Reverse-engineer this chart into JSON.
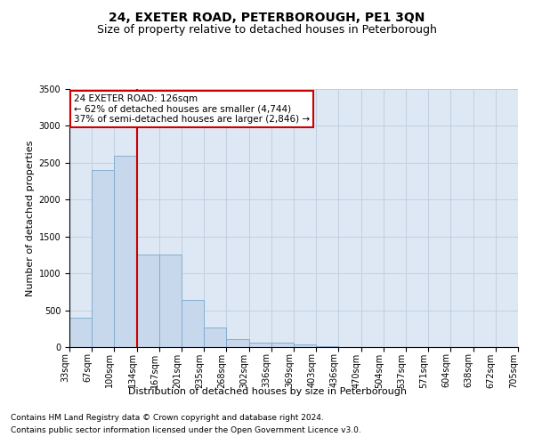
{
  "title": "24, EXETER ROAD, PETERBOROUGH, PE1 3QN",
  "subtitle": "Size of property relative to detached houses in Peterborough",
  "xlabel": "Distribution of detached houses by size in Peterborough",
  "ylabel": "Number of detached properties",
  "footnote1": "Contains HM Land Registry data © Crown copyright and database right 2024.",
  "footnote2": "Contains public sector information licensed under the Open Government Licence v3.0.",
  "bin_labels": [
    "33sqm",
    "67sqm",
    "100sqm",
    "134sqm",
    "167sqm",
    "201sqm",
    "235sqm",
    "268sqm",
    "302sqm",
    "336sqm",
    "369sqm",
    "403sqm",
    "436sqm",
    "470sqm",
    "504sqm",
    "537sqm",
    "571sqm",
    "604sqm",
    "638sqm",
    "672sqm",
    "705sqm"
  ],
  "bar_values": [
    400,
    2400,
    2600,
    1250,
    1250,
    640,
    270,
    110,
    65,
    55,
    40,
    10,
    0,
    0,
    0,
    0,
    0,
    0,
    0,
    0
  ],
  "bar_color": "#c8d8ec",
  "bar_edge_color": "#7aa8cc",
  "property_line_x": 3,
  "property_line_color": "#cc0000",
  "annotation_text": "24 EXETER ROAD: 126sqm\n← 62% of detached houses are smaller (4,744)\n37% of semi-detached houses are larger (2,846) →",
  "annotation_box_color": "#ffffff",
  "annotation_box_edge": "#cc0000",
  "ylim": [
    0,
    3500
  ],
  "yticks": [
    0,
    500,
    1000,
    1500,
    2000,
    2500,
    3000,
    3500
  ],
  "grid_color": "#c0d0e0",
  "background_color": "#dde8f4",
  "figure_background": "#ffffff",
  "title_fontsize": 10,
  "subtitle_fontsize": 9,
  "axis_label_fontsize": 8,
  "tick_fontsize": 7,
  "footnote_fontsize": 6.5,
  "annotation_fontsize": 7.5
}
